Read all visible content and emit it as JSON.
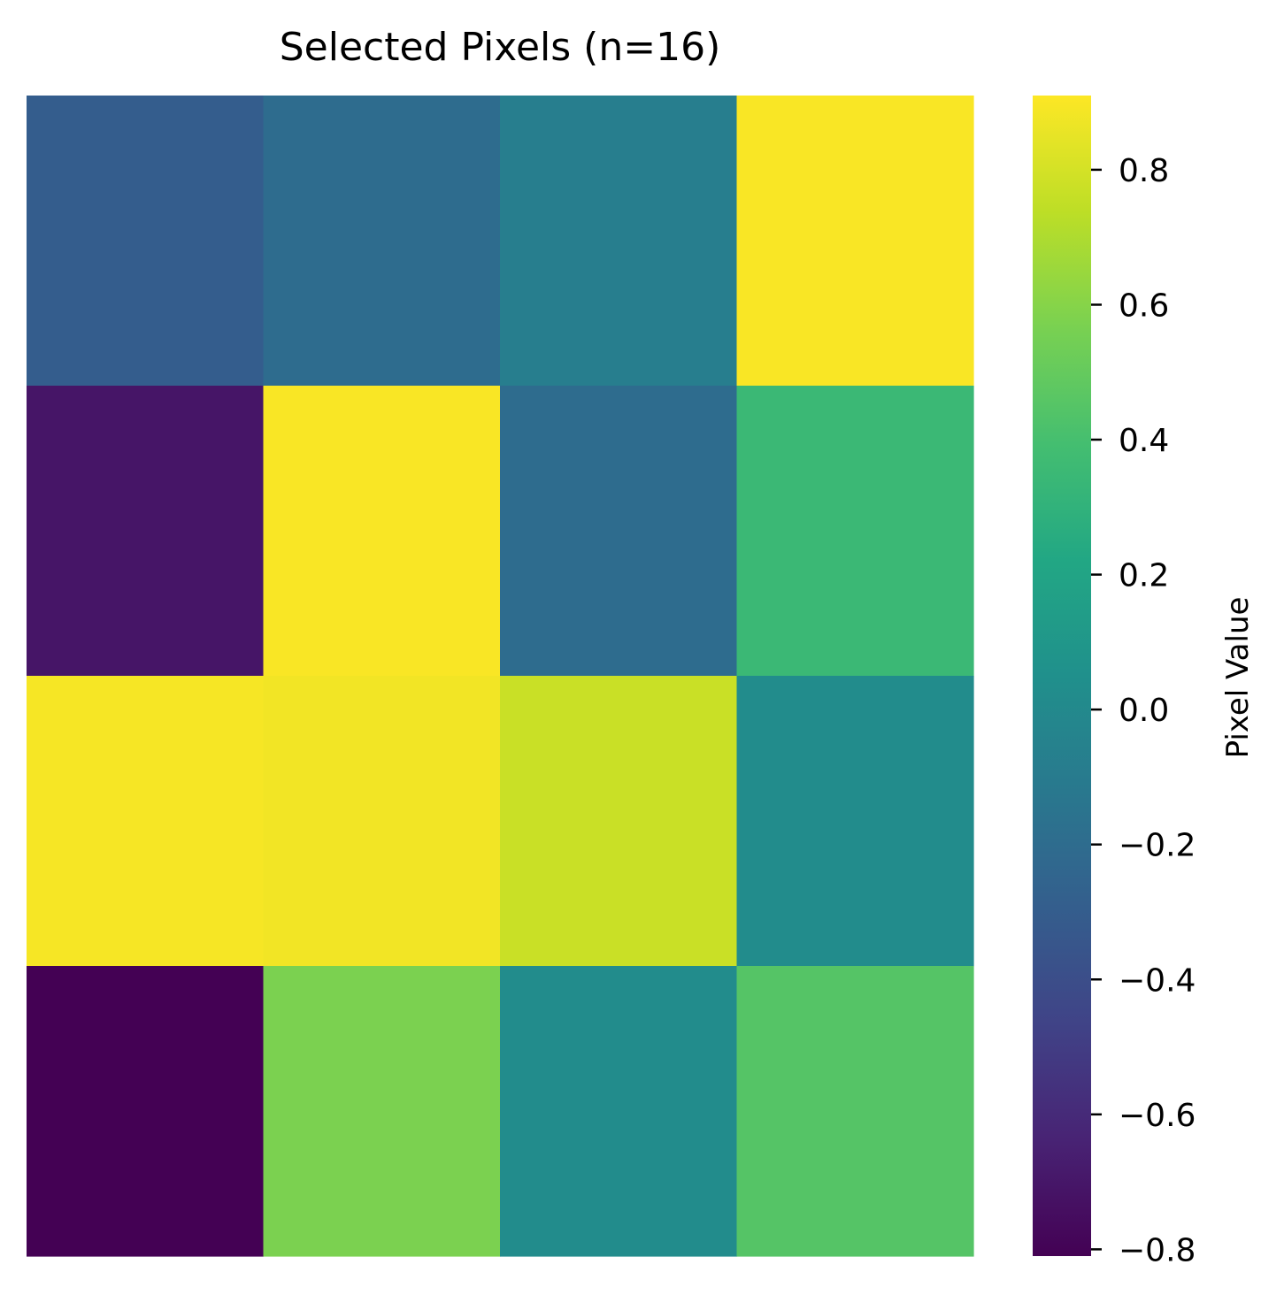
{
  "chart_data": {
    "type": "heatmap",
    "title": "Selected Pixels (n=16)",
    "xlabel": "",
    "ylabel": "",
    "rows": 4,
    "cols": 4,
    "values": [
      [
        -0.3,
        -0.2,
        -0.08,
        0.9
      ],
      [
        -0.71,
        0.9,
        -0.2,
        0.35
      ],
      [
        0.89,
        0.88,
        0.77,
        0.02
      ],
      [
        -0.81,
        0.57,
        0.02,
        0.45
      ]
    ],
    "colormap": "viridis",
    "colorbar": {
      "label": "Pixel Value",
      "range": [
        -0.81,
        0.91
      ],
      "ticks": [
        0.8,
        0.6,
        0.4,
        0.2,
        0.0,
        -0.2,
        -0.4,
        -0.6,
        -0.8
      ],
      "tick_labels": [
        "0.8",
        "0.6",
        "0.4",
        "0.2",
        "0.0",
        "−0.2",
        "−0.4",
        "−0.6",
        "−0.8"
      ]
    },
    "grid": false,
    "axes_ticks": false
  }
}
